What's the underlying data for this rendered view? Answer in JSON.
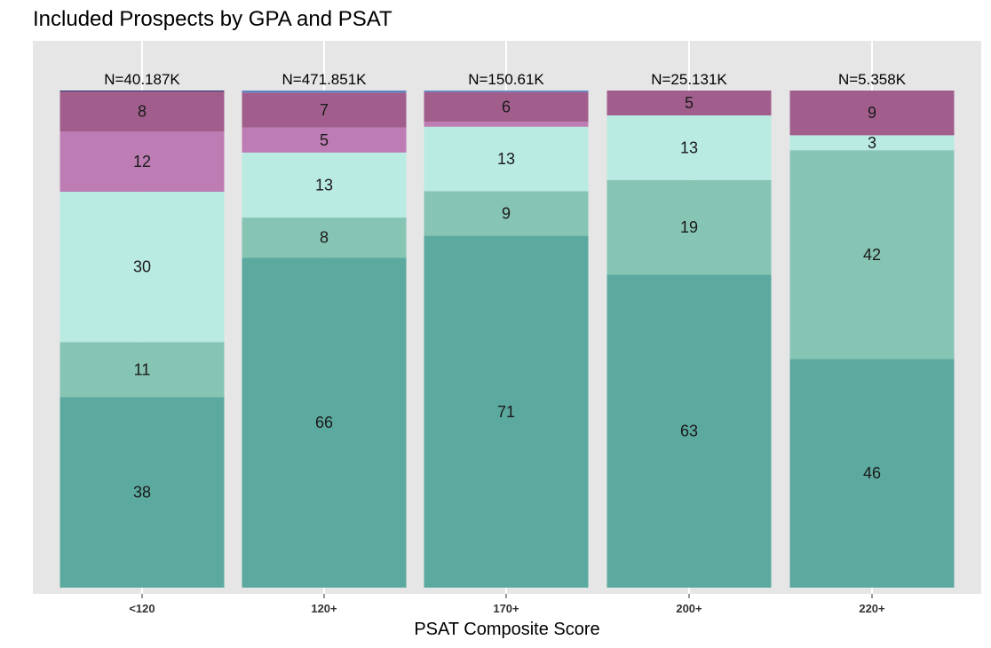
{
  "chart_data": {
    "type": "bar",
    "stacked": true,
    "normalized": true,
    "title": "Included Prospects by GPA and PSAT",
    "xlabel": "PSAT Composite Score",
    "ylabel": "",
    "ylim": [
      0,
      100
    ],
    "grid": true,
    "categories": [
      "<120",
      "120+",
      "170+",
      "200+",
      "220+"
    ],
    "n_labels": [
      "N=40.187K",
      "N=471.851K",
      "N=150.61K",
      "N=25.131K",
      "N=5.358K"
    ],
    "colors": {
      "panel_background": "#e6e6e6",
      "gridline": "#ffffff",
      "series": [
        "#5ca99f",
        "#86c4b4",
        "#b9ebe3",
        "#bd7cb3",
        "#a15e8c",
        "#5b84c4",
        "#2e2e6e"
      ]
    },
    "series": [
      {
        "values": [
          38,
          66,
          71,
          63,
          46
        ],
        "labels": [
          "38",
          "66",
          "71",
          "63",
          "46"
        ]
      },
      {
        "values": [
          11,
          8,
          9,
          19,
          42
        ],
        "labels": [
          "11",
          "8",
          "9",
          "19",
          "42"
        ]
      },
      {
        "values": [
          30,
          13,
          13,
          13,
          3
        ],
        "labels": [
          "30",
          "13",
          "13",
          "13",
          "3"
        ]
      },
      {
        "values": [
          12,
          5,
          1,
          0,
          0
        ],
        "labels": [
          "12",
          "5",
          "",
          "",
          ""
        ]
      },
      {
        "values": [
          8,
          7,
          6,
          5,
          9
        ],
        "labels": [
          "8",
          "7",
          "6",
          "5",
          "9"
        ]
      },
      {
        "values": [
          0,
          0.4,
          0.3,
          0,
          0
        ],
        "labels": [
          "",
          "",
          "",
          "",
          ""
        ]
      },
      {
        "values": [
          0.2,
          0,
          0,
          0,
          0
        ],
        "labels": [
          "",
          "",
          "",
          "",
          ""
        ]
      }
    ]
  }
}
